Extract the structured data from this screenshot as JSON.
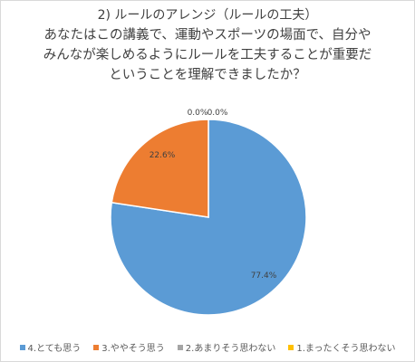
{
  "chart_data": {
    "type": "pie",
    "title": "2) ルールのアレンジ（ルールの工夫）",
    "subtitle_lines": [
      "あなたはこの講義で、運動やスポーツの場面で、自分や",
      "みんなが楽しめるようにルールを工夫することが重要だ",
      "ということを理解できましたか？"
    ],
    "slices": [
      {
        "name": "4.とても思う",
        "value": 77.4,
        "label": "77.4%",
        "color": "#5b9bd5"
      },
      {
        "name": "3.ややそう思う",
        "value": 22.6,
        "label": "22.6%",
        "color": "#ed7d31"
      },
      {
        "name": "2.あまりそう思わない",
        "value": 0.0,
        "label": "0.0%",
        "color": "#a5a5a5"
      },
      {
        "name": "1.まったくそう思わない",
        "value": 0.0,
        "label": "0.0%",
        "color": "#ffc000"
      }
    ],
    "legend_position": "bottom"
  }
}
